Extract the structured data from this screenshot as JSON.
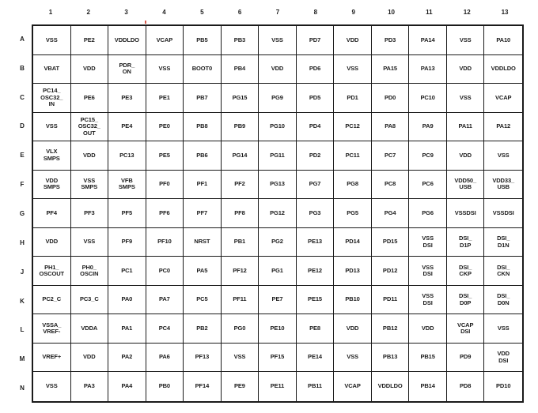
{
  "colors": {
    "background": "#ffffff",
    "grid_border": "#1a1a1a",
    "text": "#1c1c1c",
    "artifact_red": "#cc3322"
  },
  "pinout_table": {
    "column_headers": [
      "1",
      "2",
      "3",
      "4",
      "5",
      "6",
      "7",
      "8",
      "9",
      "10",
      "11",
      "12",
      "13"
    ],
    "rows": [
      {
        "label": "A",
        "cells": [
          "VSS",
          "PE2",
          "VDDLDO",
          "VCAP",
          "PB5",
          "PB3",
          "VSS",
          "PD7",
          "VDD",
          "PD3",
          "PA14",
          "VSS",
          "PA10"
        ]
      },
      {
        "label": "B",
        "cells": [
          "VBAT",
          "VDD",
          "PDR_\nON",
          "VSS",
          "BOOT0",
          "PB4",
          "VDD",
          "PD6",
          "VSS",
          "PA15",
          "PA13",
          "VDD",
          "VDDLDO"
        ]
      },
      {
        "label": "C",
        "cells": [
          "PC14_\nOSC32_\nIN",
          "PE6",
          "PE3",
          "PE1",
          "PB7",
          "PG15",
          "PG9",
          "PD5",
          "PD1",
          "PD0",
          "PC10",
          "VSS",
          "VCAP"
        ]
      },
      {
        "label": "D",
        "cells": [
          "VSS",
          "PC15_\nOSC32_\nOUT",
          "PE4",
          "PE0",
          "PB8",
          "PB9",
          "PG10",
          "PD4",
          "PC12",
          "PA8",
          "PA9",
          "PA11",
          "PA12"
        ]
      },
      {
        "label": "E",
        "cells": [
          "VLX\nSMPS",
          "VDD",
          "PC13",
          "PE5",
          "PB6",
          "PG14",
          "PG11",
          "PD2",
          "PC11",
          "PC7",
          "PC9",
          "VDD",
          "VSS"
        ]
      },
      {
        "label": "F",
        "cells": [
          "VDD\nSMPS",
          "VSS\nSMPS",
          "VFB\nSMPS",
          "PF0",
          "PF1",
          "PF2",
          "PG13",
          "PG7",
          "PG8",
          "PC8",
          "PC6",
          "VDD50_\nUSB",
          "VDD33_\nUSB"
        ]
      },
      {
        "label": "G",
        "cells": [
          "PF4",
          "PF3",
          "PF5",
          "PF6",
          "PF7",
          "PF8",
          "PG12",
          "PG3",
          "PG5",
          "PG4",
          "PG6",
          "VSSDSI",
          "VSSDSI"
        ]
      },
      {
        "label": "H",
        "cells": [
          "VDD",
          "VSS",
          "PF9",
          "PF10",
          "NRST",
          "PB1",
          "PG2",
          "PE13",
          "PD14",
          "PD15",
          "VSS\nDSI",
          "DSI_\nD1P",
          "DSI_\nD1N"
        ]
      },
      {
        "label": "J",
        "cells": [
          "PH1_\nOSCOUT",
          "PH0_\nOSCIN",
          "PC1",
          "PC0",
          "PA5",
          "PF12",
          "PG1",
          "PE12",
          "PD13",
          "PD12",
          "VSS\nDSI",
          "DSI_\nCKP",
          "DSI_\nCKN"
        ]
      },
      {
        "label": "K",
        "cells": [
          "PC2_C",
          "PC3_C",
          "PA0",
          "PA7",
          "PC5",
          "PF11",
          "PE7",
          "PE15",
          "PB10",
          "PD11",
          "VSS\nDSI",
          "DSI_\nD0P",
          "DSI_\nD0N"
        ]
      },
      {
        "label": "L",
        "cells": [
          "VSSA_\nVREF-",
          "VDDA",
          "PA1",
          "PC4",
          "PB2",
          "PG0",
          "PE10",
          "PE8",
          "VDD",
          "PB12",
          "VDD",
          "VCAP\nDSI",
          "VSS"
        ]
      },
      {
        "label": "M",
        "cells": [
          "VREF+",
          "VDD",
          "PA2",
          "PA6",
          "PF13",
          "VSS",
          "PF15",
          "PE14",
          "VSS",
          "PB13",
          "PB15",
          "PD9",
          "VDD\nDSI"
        ]
      },
      {
        "label": "N",
        "cells": [
          "VSS",
          "PA3",
          "PA4",
          "PB0",
          "PF14",
          "PE9",
          "PE11",
          "PB11",
          "VCAP",
          "VDDLDO",
          "PB14",
          "PD8",
          "PD10"
        ]
      }
    ]
  }
}
